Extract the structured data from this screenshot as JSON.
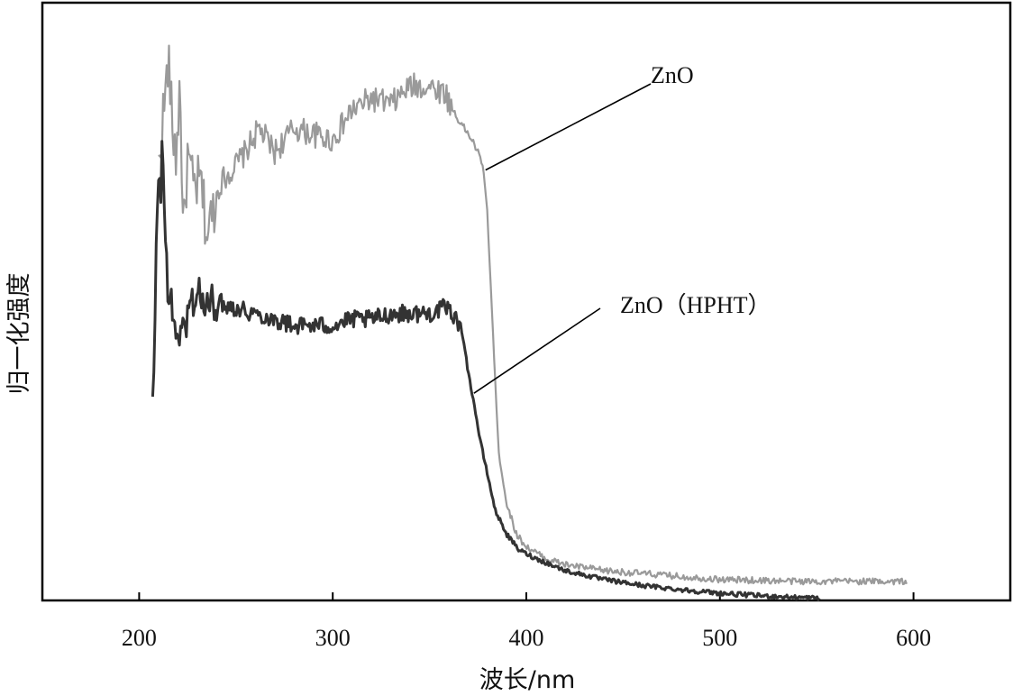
{
  "chart_data": {
    "type": "line",
    "title": "",
    "xlabel": "波长/nm",
    "ylabel": "归一化强度",
    "xlim": [
      150,
      650
    ],
    "ylim": [
      0,
      1
    ],
    "x_ticks": [
      200,
      300,
      400,
      500,
      600
    ],
    "y_ticks": [],
    "grid": false,
    "legend": "none",
    "series": [
      {
        "name": "ZnO",
        "color": "#9a9a9a",
        "noise": 0.022,
        "points": [
          [
            210,
            0.72
          ],
          [
            212,
            0.8
          ],
          [
            214,
            0.86
          ],
          [
            215,
            0.91
          ],
          [
            217,
            0.8
          ],
          [
            219,
            0.74
          ],
          [
            221,
            0.86
          ],
          [
            223,
            0.61
          ],
          [
            225,
            0.74
          ],
          [
            228,
            0.69
          ],
          [
            232,
            0.7
          ],
          [
            235,
            0.61
          ],
          [
            238,
            0.65
          ],
          [
            242,
            0.7
          ],
          [
            248,
            0.72
          ],
          [
            255,
            0.75
          ],
          [
            262,
            0.79
          ],
          [
            270,
            0.75
          ],
          [
            280,
            0.79
          ],
          [
            290,
            0.78
          ],
          [
            300,
            0.77
          ],
          [
            310,
            0.82
          ],
          [
            320,
            0.84
          ],
          [
            330,
            0.83
          ],
          [
            340,
            0.86
          ],
          [
            350,
            0.86
          ],
          [
            358,
            0.85
          ],
          [
            362,
            0.82
          ],
          [
            368,
            0.79
          ],
          [
            372,
            0.77
          ],
          [
            375,
            0.75
          ],
          [
            378,
            0.72
          ],
          [
            380,
            0.64
          ],
          [
            382,
            0.5
          ],
          [
            384,
            0.36
          ],
          [
            386,
            0.24
          ],
          [
            390,
            0.16
          ],
          [
            395,
            0.11
          ],
          [
            400,
            0.09
          ],
          [
            410,
            0.07
          ],
          [
            420,
            0.06
          ],
          [
            440,
            0.05
          ],
          [
            460,
            0.045
          ],
          [
            480,
            0.04
          ],
          [
            500,
            0.035
          ],
          [
            540,
            0.032
          ],
          [
            570,
            0.032
          ],
          [
            597,
            0.032
          ]
        ]
      },
      {
        "name": "ZnO（HPHT）",
        "color": "#333333",
        "noise": 0.015,
        "points": [
          [
            207,
            0.33
          ],
          [
            208,
            0.4
          ],
          [
            209,
            0.63
          ],
          [
            210,
            0.72
          ],
          [
            211,
            0.66
          ],
          [
            212,
            0.79
          ],
          [
            213,
            0.64
          ],
          [
            215,
            0.52
          ],
          [
            218,
            0.46
          ],
          [
            222,
            0.44
          ],
          [
            226,
            0.49
          ],
          [
            230,
            0.52
          ],
          [
            234,
            0.49
          ],
          [
            240,
            0.5
          ],
          [
            250,
            0.49
          ],
          [
            260,
            0.48
          ],
          [
            270,
            0.47
          ],
          [
            280,
            0.46
          ],
          [
            290,
            0.46
          ],
          [
            300,
            0.46
          ],
          [
            310,
            0.47
          ],
          [
            320,
            0.47
          ],
          [
            330,
            0.48
          ],
          [
            340,
            0.48
          ],
          [
            350,
            0.48
          ],
          [
            358,
            0.49
          ],
          [
            362,
            0.48
          ],
          [
            366,
            0.46
          ],
          [
            368,
            0.43
          ],
          [
            370,
            0.38
          ],
          [
            373,
            0.33
          ],
          [
            376,
            0.27
          ],
          [
            380,
            0.21
          ],
          [
            384,
            0.15
          ],
          [
            390,
            0.11
          ],
          [
            396,
            0.085
          ],
          [
            405,
            0.07
          ],
          [
            420,
            0.05
          ],
          [
            440,
            0.035
          ],
          [
            460,
            0.025
          ],
          [
            480,
            0.018
          ],
          [
            500,
            0.012
          ],
          [
            520,
            0.008
          ],
          [
            540,
            0.005
          ],
          [
            552,
            0.004
          ]
        ]
      }
    ],
    "annotations": [
      {
        "text": "ZnO",
        "series_index": 0,
        "at_x": 378
      },
      {
        "text": "ZnO（HPHT）",
        "series_index": 1,
        "at_x": 372
      }
    ]
  }
}
